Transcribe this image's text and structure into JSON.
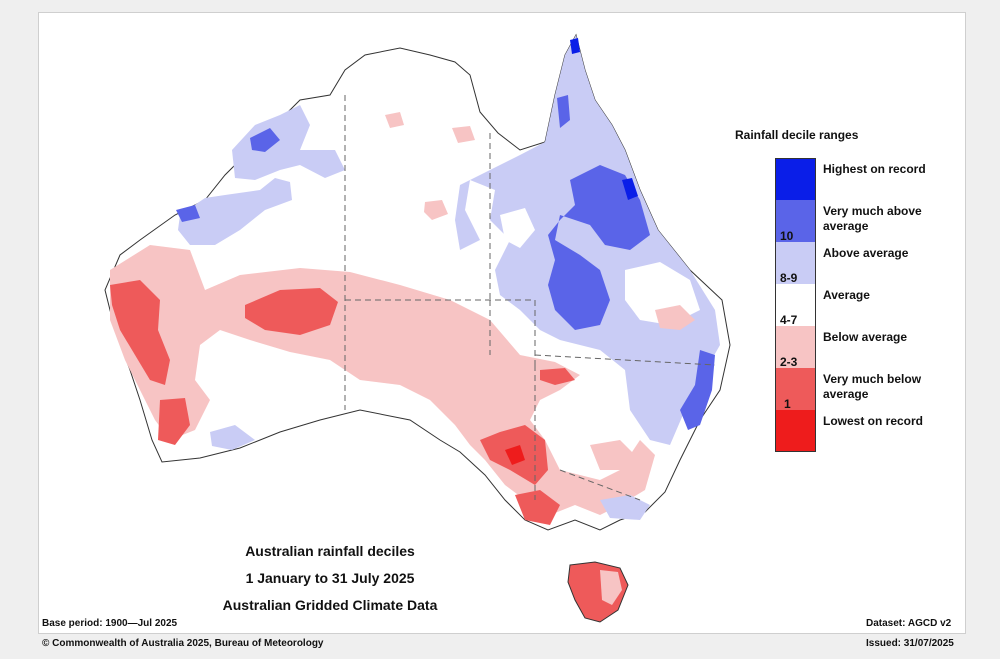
{
  "legend": {
    "title": "Rainfall decile ranges",
    "items": [
      {
        "label": "Highest on record",
        "color": "#0a1ee8"
      },
      {
        "label": "Very much above average",
        "color": "#5a64e8"
      },
      {
        "label": "Above average",
        "color": "#c9ccf5"
      },
      {
        "label": "Average",
        "color": "#ffffff"
      },
      {
        "label": "Below average",
        "color": "#f7c4c4"
      },
      {
        "label": "Very much below average",
        "color": "#ee5a5a"
      },
      {
        "label": "Lowest on record",
        "color": "#ee1c1c"
      }
    ],
    "ranges": [
      "10",
      "8-9",
      "4-7",
      "2-3",
      "1"
    ]
  },
  "map": {
    "title_line1": "Australian rainfall deciles",
    "title_line2": "1 January to 31 July 2025",
    "title_line3": "Australian Gridded Climate Data"
  },
  "footer": {
    "base_period": "Base period: 1900—Jul 2025",
    "dataset": "Dataset: AGCD v2",
    "copyright": "© Commonwealth of Australia 2025, Bureau of Meteorology",
    "issued": "Issued: 31/07/2025"
  }
}
